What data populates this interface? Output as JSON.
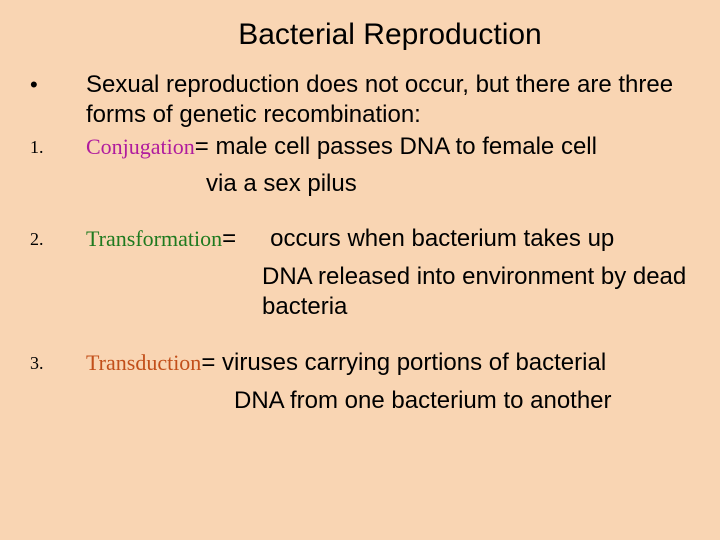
{
  "background_color": "#f9d5b3",
  "text_color": "#000000",
  "title_fontsize": 30,
  "body_fontsize": 24,
  "term_fontsize": 22,
  "term_font": "Garamond",
  "title": "Bacterial Reproduction",
  "intro": {
    "bullet": "•",
    "text": "Sexual reproduction does not occur, but there are three forms of genetic recombination:"
  },
  "items": [
    {
      "num": "1.",
      "term": "Conjugation",
      "term_color": "#b01c9e",
      "def_inline": "= male cell passes DNA to female cell",
      "def_below": "via a sex pilus"
    },
    {
      "num": "2.",
      "term": "Transformation",
      "term_color": "#1f7a1f",
      "equals": "=",
      "def_inline": "occurs when bacterium takes up",
      "def_below": "DNA released into environment by dead bacteria"
    },
    {
      "num": "3.",
      "term": "Transduction",
      "term_color": "#c24f1a",
      "def_inline": "= viruses carrying portions of bacterial",
      "def_below": "DNA from one bacterium to another"
    }
  ]
}
